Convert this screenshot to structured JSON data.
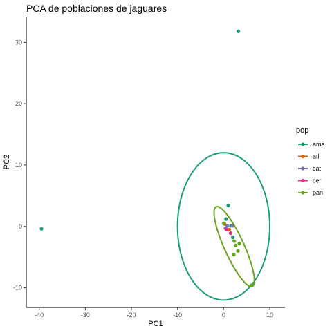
{
  "chart_data": {
    "type": "scatter",
    "title": "PCA de poblaciones de jaguares",
    "xlabel": "PC1",
    "ylabel": "PC2",
    "xlim": [
      -42.8,
      13.3
    ],
    "ylim": [
      -13.2,
      34.2
    ],
    "xticks": [
      -40,
      -30,
      -20,
      -10,
      0,
      10
    ],
    "yticks": [
      -10,
      0,
      10,
      20,
      30
    ],
    "grid": false,
    "legend": {
      "title": "pop",
      "position": "right"
    },
    "series": [
      {
        "name": "ama",
        "color": "#1b9e77",
        "points": [
          [
            -39.5,
            -0.4
          ],
          [
            3.2,
            31.8
          ],
          [
            1.0,
            3.4
          ],
          [
            0.5,
            1.2
          ],
          [
            2.0,
            -1.8
          ],
          [
            1.6,
            0.1
          ]
        ],
        "ellipse": {
          "cx": 0.0,
          "cy": 0.0,
          "rx": 10.0,
          "ry": 12.0,
          "angle_deg": 0
        }
      },
      {
        "name": "atl",
        "color": "#d95f02",
        "points": [
          [
            0.2,
            0.4
          ],
          [
            1.2,
            -0.5
          ]
        ]
      },
      {
        "name": "cat",
        "color": "#7570b3",
        "points": [
          [
            0.8,
            0.1
          ],
          [
            1.9,
            0.1
          ],
          [
            0.4,
            -0.3
          ]
        ]
      },
      {
        "name": "cer",
        "color": "#e7298a",
        "points": [
          [
            0.6,
            -0.5
          ],
          [
            1.5,
            -1.1
          ]
        ]
      },
      {
        "name": "pan",
        "color": "#66a61e",
        "points": [
          [
            6.0,
            -9.6
          ],
          [
            2.2,
            -4.6
          ],
          [
            3.1,
            -4.0
          ],
          [
            2.6,
            -3.1
          ],
          [
            3.4,
            -2.8
          ],
          [
            2.3,
            -2.4
          ],
          [
            0.0,
            0.5
          ]
        ],
        "ellipse": {
          "cx": 2.3,
          "cy": -3.3,
          "rx": 2.0,
          "ry": 7.6,
          "angle_deg": 32
        }
      }
    ]
  }
}
